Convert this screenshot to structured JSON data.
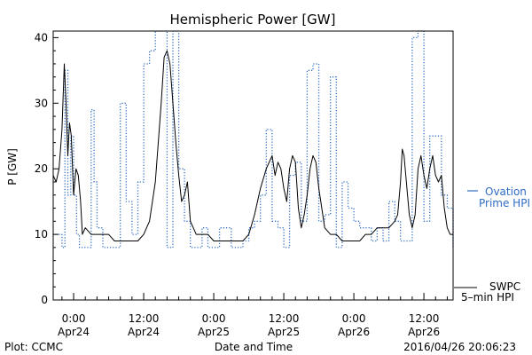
{
  "chart_data": {
    "type": "line",
    "title": "Hemispheric Power [GW]",
    "xlabel": "Date and Time",
    "ylabel": "P [GW]",
    "ylim": [
      0,
      41
    ],
    "xlim": [
      -3.5,
      65
    ],
    "x_unit": "hours since 2016-04-24 00:00 UTC",
    "yticks": [
      0,
      10,
      20,
      30,
      40
    ],
    "xticks": [
      {
        "x": 0,
        "time": "0:00",
        "date": "Apr24"
      },
      {
        "x": 12,
        "time": "12:00",
        "date": "Apr24"
      },
      {
        "x": 24,
        "time": "0:00",
        "date": "Apr25"
      },
      {
        "x": 36,
        "time": "12:00",
        "date": "Apr25"
      },
      {
        "x": 48,
        "time": "0:00",
        "date": "Apr26"
      },
      {
        "x": 60,
        "time": "12:00",
        "date": "Apr26"
      }
    ],
    "grid": false,
    "legend_position": "right",
    "series": [
      {
        "name": "Ovation Prime HPI",
        "legend_lines": [
          "Ovation",
          "Prime HPI"
        ],
        "style": "dotted",
        "color": "#2f6cc4",
        "step": true,
        "x": [
          -3.5,
          -2.5,
          -2,
          -1.5,
          -1,
          -0.5,
          0,
          0.5,
          1,
          2,
          3,
          3.5,
          4,
          5,
          6,
          7,
          8,
          9,
          10,
          11,
          12,
          13,
          14,
          15,
          16,
          17,
          18,
          19,
          20,
          21,
          22,
          23,
          24,
          25,
          26,
          27,
          28,
          29,
          30,
          31,
          32,
          33,
          34,
          35,
          36,
          37,
          38,
          39,
          40,
          41,
          42,
          43,
          44,
          45,
          46,
          47,
          48,
          49,
          50,
          51,
          52,
          53,
          54,
          55,
          56,
          57,
          58,
          59,
          60,
          61,
          62,
          63,
          64,
          65
        ],
        "y": [
          10,
          10,
          8,
          35,
          16,
          25,
          16,
          10,
          8,
          8,
          29,
          18,
          11,
          8,
          8,
          8,
          30,
          15,
          10,
          18,
          36,
          38,
          41,
          41,
          8,
          41,
          20,
          12,
          8,
          8,
          11,
          8,
          8,
          11,
          11,
          8,
          8,
          9,
          11,
          12,
          16,
          26,
          12,
          11,
          8,
          19,
          21,
          12,
          35,
          36,
          12,
          13,
          34,
          8,
          18,
          14,
          12,
          11,
          11,
          9,
          11,
          9,
          15,
          12,
          9,
          9,
          40,
          41,
          12,
          25,
          25,
          16,
          14,
          8
        ],
        "approximate": true
      },
      {
        "name": "SWPC 5-min HPI",
        "legend_lines": [
          "SWPC",
          "5–min HPI"
        ],
        "style": "solid",
        "color": "#000000",
        "x": [
          -3.5,
          -3,
          -2.5,
          -2,
          -1.6,
          -1.3,
          -1.0,
          -0.7,
          -0.4,
          0.0,
          0.4,
          0.8,
          1.2,
          1.5,
          2.0,
          3.0,
          4.0,
          5.0,
          6.0,
          7.0,
          8.0,
          9.0,
          10.0,
          11.0,
          12.0,
          12.5,
          13.0,
          14.0,
          14.5,
          15.0,
          15.5,
          16.0,
          16.5,
          17.0,
          17.5,
          18.0,
          18.5,
          19.0,
          19.5,
          20.0,
          20.5,
          21.0,
          22.0,
          23.0,
          24.0,
          25.0,
          26.0,
          27.0,
          28.0,
          29.0,
          30.0,
          31.0,
          32.0,
          33.0,
          33.5,
          34.0,
          34.5,
          35.0,
          35.5,
          36.0,
          36.5,
          37.0,
          37.5,
          38.0,
          38.5,
          39.0,
          39.5,
          40.0,
          40.5,
          41.0,
          41.5,
          42.0,
          42.5,
          43.0,
          44.0,
          45.0,
          46.0,
          47.0,
          48.0,
          49.0,
          50.0,
          51.0,
          52.0,
          53.0,
          54.0,
          55.0,
          55.5,
          56.0,
          56.3,
          56.6,
          57.0,
          57.5,
          58.0,
          58.5,
          59.0,
          59.5,
          60.0,
          60.5,
          61.0,
          61.5,
          62.0,
          62.5,
          63.0,
          63.5,
          64.0,
          64.5,
          65.0
        ],
        "y": [
          19,
          18,
          20,
          26,
          36,
          30,
          22,
          27,
          25,
          16,
          20,
          19,
          15,
          10,
          11,
          10,
          10,
          10,
          10,
          9,
          9,
          9,
          9,
          9,
          10,
          11,
          12,
          18,
          24,
          30,
          37,
          38,
          36,
          30,
          24,
          19,
          15,
          16,
          18,
          12,
          11,
          10,
          10,
          10,
          9,
          9,
          9,
          9,
          9,
          9,
          10,
          13,
          17,
          20,
          21,
          22,
          19,
          21,
          20,
          17,
          15,
          20,
          22,
          21,
          14,
          11,
          13,
          16,
          20,
          22,
          21,
          17,
          14,
          11,
          10,
          10,
          9,
          9,
          9,
          9,
          10,
          10,
          11,
          11,
          11,
          12,
          13,
          18,
          23,
          22,
          18,
          13,
          11,
          13,
          20,
          22,
          19,
          17,
          20,
          22,
          19,
          18,
          19,
          14,
          11,
          10,
          10
        ],
        "approximate": true
      }
    ]
  },
  "footer": {
    "plot_credit": "Plot: CCMC",
    "timestamp": "2016/04/26 20:06:23"
  }
}
